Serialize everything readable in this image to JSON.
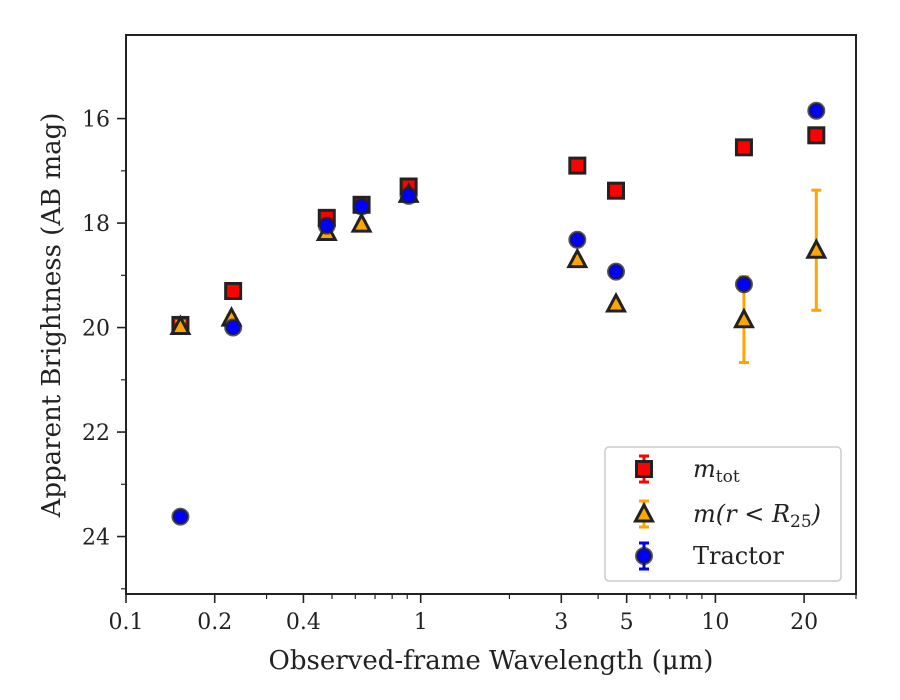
{
  "chart_data": {
    "type": "scatter",
    "x_scale": "log",
    "y_inverted": true,
    "xlim": [
      0.1,
      30
    ],
    "ylim": [
      25.1,
      14.4
    ],
    "x_ticks": [
      {
        "value": 0.1,
        "label": "0.1"
      },
      {
        "value": 0.2,
        "label": "0.2"
      },
      {
        "value": 0.4,
        "label": "0.4"
      },
      {
        "value": 1,
        "label": "1"
      },
      {
        "value": 3,
        "label": "3"
      },
      {
        "value": 5,
        "label": "5"
      },
      {
        "value": 10,
        "label": "10"
      },
      {
        "value": 20,
        "label": "20"
      }
    ],
    "x_minor_ticks": [
      0.3,
      0.5,
      0.6,
      0.7,
      0.8,
      0.9,
      2,
      4,
      6,
      7,
      8,
      9,
      30
    ],
    "y_ticks": [
      16,
      18,
      20,
      22,
      24
    ],
    "y_minor_ticks": [
      17,
      19,
      21,
      23,
      25
    ],
    "xlabel": "Observed-frame Wavelength (μm)",
    "ylabel": "Apparent Brightness (AB mag)",
    "grid": false,
    "legend_position": "lower right",
    "series": [
      {
        "name": "m_tot",
        "legend_main": "m",
        "legend_sub": "tot",
        "marker": "square",
        "color": "#ff0000",
        "edge_color": "#222222",
        "error_color": "#ff0000",
        "points": [
          {
            "x": 0.153,
            "y": 19.95,
            "err": 0.1
          },
          {
            "x": 0.231,
            "y": 19.3,
            "err": 0.05
          },
          {
            "x": 0.48,
            "y": 17.9,
            "err": 0.05
          },
          {
            "x": 0.63,
            "y": 17.65,
            "err": 0.05
          },
          {
            "x": 0.91,
            "y": 17.3,
            "err": 0.05
          },
          {
            "x": 3.4,
            "y": 16.9,
            "err": 0.05
          },
          {
            "x": 4.6,
            "y": 17.38,
            "err": 0.05
          },
          {
            "x": 12.5,
            "y": 16.55,
            "err": 0.05
          },
          {
            "x": 22,
            "y": 16.32,
            "err": 0.05
          }
        ]
      },
      {
        "name": "m(r < R25)",
        "legend_main": "m(r < R",
        "legend_sub": "25",
        "legend_tail": ")",
        "marker": "triangle",
        "color": "#ffa500",
        "edge_color": "#222222",
        "error_color": "#ffa500",
        "points": [
          {
            "x": 0.153,
            "y": 19.98,
            "err": 0.1
          },
          {
            "x": 0.228,
            "y": 19.82,
            "err": 0.05
          },
          {
            "x": 0.48,
            "y": 18.18,
            "err": 0.05
          },
          {
            "x": 0.63,
            "y": 18.02,
            "err": 0.05
          },
          {
            "x": 0.91,
            "y": 17.45,
            "err": 0.05
          },
          {
            "x": 3.4,
            "y": 18.7,
            "err": 0.05
          },
          {
            "x": 4.6,
            "y": 19.55,
            "err": 0.05
          },
          {
            "x": 12.5,
            "y": 19.85,
            "err": 0.82
          },
          {
            "x": 22,
            "y": 18.52,
            "err": 1.15
          }
        ]
      },
      {
        "name": "Tractor",
        "legend_main": "Tractor",
        "marker": "circle",
        "color": "#0000ff",
        "edge_color": "#222222",
        "error_color": "#0000ff",
        "points": [
          {
            "x": 0.153,
            "y": 23.62,
            "err": 0.05
          },
          {
            "x": 0.231,
            "y": 20.0,
            "err": 0.05
          },
          {
            "x": 0.48,
            "y": 18.05,
            "err": 0.05
          },
          {
            "x": 0.63,
            "y": 17.68,
            "err": 0.05
          },
          {
            "x": 0.91,
            "y": 17.48,
            "err": 0.05
          },
          {
            "x": 3.4,
            "y": 18.32,
            "err": 0.05
          },
          {
            "x": 4.6,
            "y": 18.93,
            "err": 0.05
          },
          {
            "x": 12.5,
            "y": 19.17,
            "err": 0.05
          },
          {
            "x": 22,
            "y": 15.85,
            "err": 0.05
          }
        ]
      }
    ]
  }
}
